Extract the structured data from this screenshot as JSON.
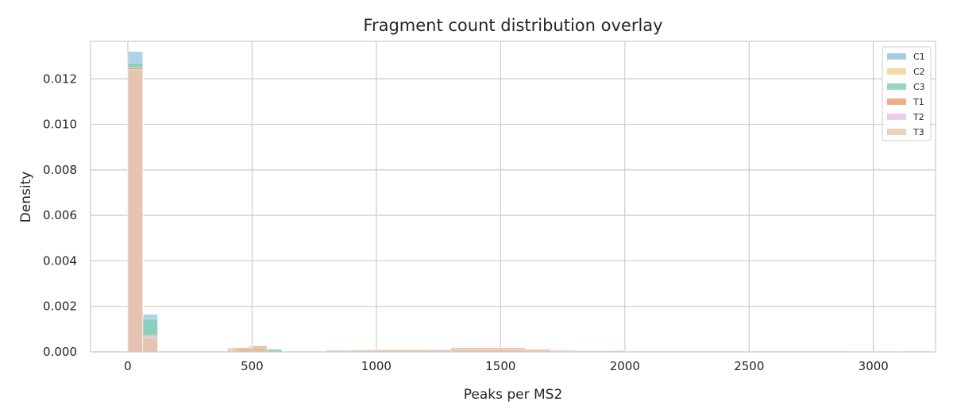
{
  "chart_data": {
    "type": "bar",
    "title": "Fragment count distribution overlay",
    "xlabel": "Peaks per MS2",
    "ylabel": "Density",
    "xlim": [
      -150,
      3250
    ],
    "ylim": [
      0,
      0.01365
    ],
    "xticks": [
      0,
      500,
      1000,
      1500,
      2000,
      2500,
      3000
    ],
    "yticks": [
      0.0,
      0.002,
      0.004,
      0.006,
      0.008,
      0.01,
      0.012
    ],
    "ytick_labels": [
      "0.000",
      "0.002",
      "0.004",
      "0.006",
      "0.008",
      "0.010",
      "0.012"
    ],
    "grid": true,
    "legend_position": "top-right",
    "bin_width": 60,
    "series": [
      {
        "name": "C1",
        "color": "#8ec2e0",
        "bins": [
          {
            "x0": 0,
            "x1": 60,
            "density": 0.0132
          },
          {
            "x0": 60,
            "x1": 120,
            "density": 0.00165
          },
          {
            "x0": 120,
            "x1": 180,
            "density": 3e-05
          },
          {
            "x0": 440,
            "x1": 500,
            "density": 0.00012
          },
          {
            "x0": 500,
            "x1": 560,
            "density": 0.00015
          },
          {
            "x0": 560,
            "x1": 620,
            "density": 6e-05
          },
          {
            "x0": 1000,
            "x1": 1300,
            "density": 7e-05
          },
          {
            "x0": 1300,
            "x1": 1600,
            "density": 9e-05
          }
        ]
      },
      {
        "name": "C2",
        "color": "#f0cf8c",
        "bins": [
          {
            "x0": 0,
            "x1": 60,
            "density": 0.0125
          },
          {
            "x0": 60,
            "x1": 120,
            "density": 0.0008
          },
          {
            "x0": 420,
            "x1": 480,
            "density": 0.0002
          },
          {
            "x0": 480,
            "x1": 540,
            "density": 0.00024
          },
          {
            "x0": 540,
            "x1": 600,
            "density": 0.00012
          },
          {
            "x0": 900,
            "x1": 1300,
            "density": 0.0001
          },
          {
            "x0": 1300,
            "x1": 1700,
            "density": 0.00012
          }
        ]
      },
      {
        "name": "C3",
        "color": "#7ecdb3",
        "bins": [
          {
            "x0": 0,
            "x1": 60,
            "density": 0.0127
          },
          {
            "x0": 60,
            "x1": 120,
            "density": 0.00145
          },
          {
            "x0": 440,
            "x1": 500,
            "density": 0.00015
          },
          {
            "x0": 500,
            "x1": 560,
            "density": 0.00022
          },
          {
            "x0": 560,
            "x1": 620,
            "density": 0.00012
          },
          {
            "x0": 1000,
            "x1": 1400,
            "density": 9e-05
          },
          {
            "x0": 1400,
            "x1": 1800,
            "density": 0.0001
          }
        ]
      },
      {
        "name": "T1",
        "color": "#e89b6a",
        "bins": [
          {
            "x0": 0,
            "x1": 60,
            "density": 0.0125
          },
          {
            "x0": 60,
            "x1": 120,
            "density": 0.0006
          },
          {
            "x0": 440,
            "x1": 500,
            "density": 0.00018
          },
          {
            "x0": 500,
            "x1": 560,
            "density": 0.00026
          },
          {
            "x0": 1000,
            "x1": 1300,
            "density": 0.00011
          },
          {
            "x0": 1300,
            "x1": 1600,
            "density": 0.00018
          },
          {
            "x0": 1600,
            "x1": 1800,
            "density": 8e-05
          }
        ]
      },
      {
        "name": "T2",
        "color": "#e8bfe3",
        "bins": [
          {
            "x0": 0,
            "x1": 60,
            "density": 0.0124
          },
          {
            "x0": 60,
            "x1": 120,
            "density": 0.0007
          },
          {
            "x0": 800,
            "x1": 1200,
            "density": 8e-05
          },
          {
            "x0": 1200,
            "x1": 1600,
            "density": 0.0001
          },
          {
            "x0": 1600,
            "x1": 2000,
            "density": 6e-05
          }
        ]
      },
      {
        "name": "T3",
        "color": "#e6c6a8",
        "bins": [
          {
            "x0": 0,
            "x1": 60,
            "density": 0.0124
          },
          {
            "x0": 60,
            "x1": 120,
            "density": 0.0006
          },
          {
            "x0": 400,
            "x1": 560,
            "density": 0.00018
          },
          {
            "x0": 900,
            "x1": 1300,
            "density": 8e-05
          },
          {
            "x0": 1300,
            "x1": 1700,
            "density": 0.00012
          },
          {
            "x0": 1700,
            "x1": 1950,
            "density": 4e-05
          },
          {
            "x0": 2900,
            "x1": 3100,
            "density": 2e-05
          }
        ]
      }
    ]
  }
}
